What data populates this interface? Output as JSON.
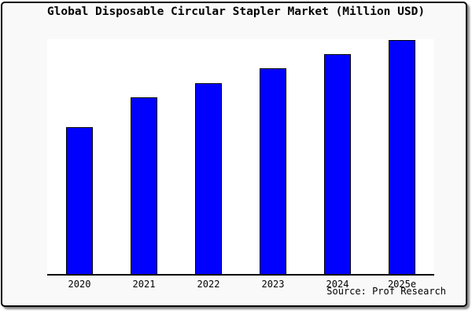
{
  "window": {
    "background_color": "#f9f9f9",
    "frame_border_color": "#000000",
    "plot_background_color": "#ffffff"
  },
  "chart_data": {
    "type": "bar",
    "title": "Global Disposable Circular Stapler Market (Million USD)",
    "categories": [
      "2020",
      "2021",
      "2022",
      "2023",
      "2024",
      "2025e"
    ],
    "values": [
      62.8,
      75.5,
      81.5,
      87.9,
      94,
      100
    ],
    "value_scale": "relative bar heights, tallest bar = 100 (y-axis has no ticks or labels in the chart)",
    "xlabel": "",
    "ylabel": "",
    "ylim": [
      0,
      100
    ],
    "grid": false,
    "legend": false,
    "bar_color": "#0000ff",
    "bar_border_color": "#000000",
    "source": "Source: Prof Research"
  }
}
